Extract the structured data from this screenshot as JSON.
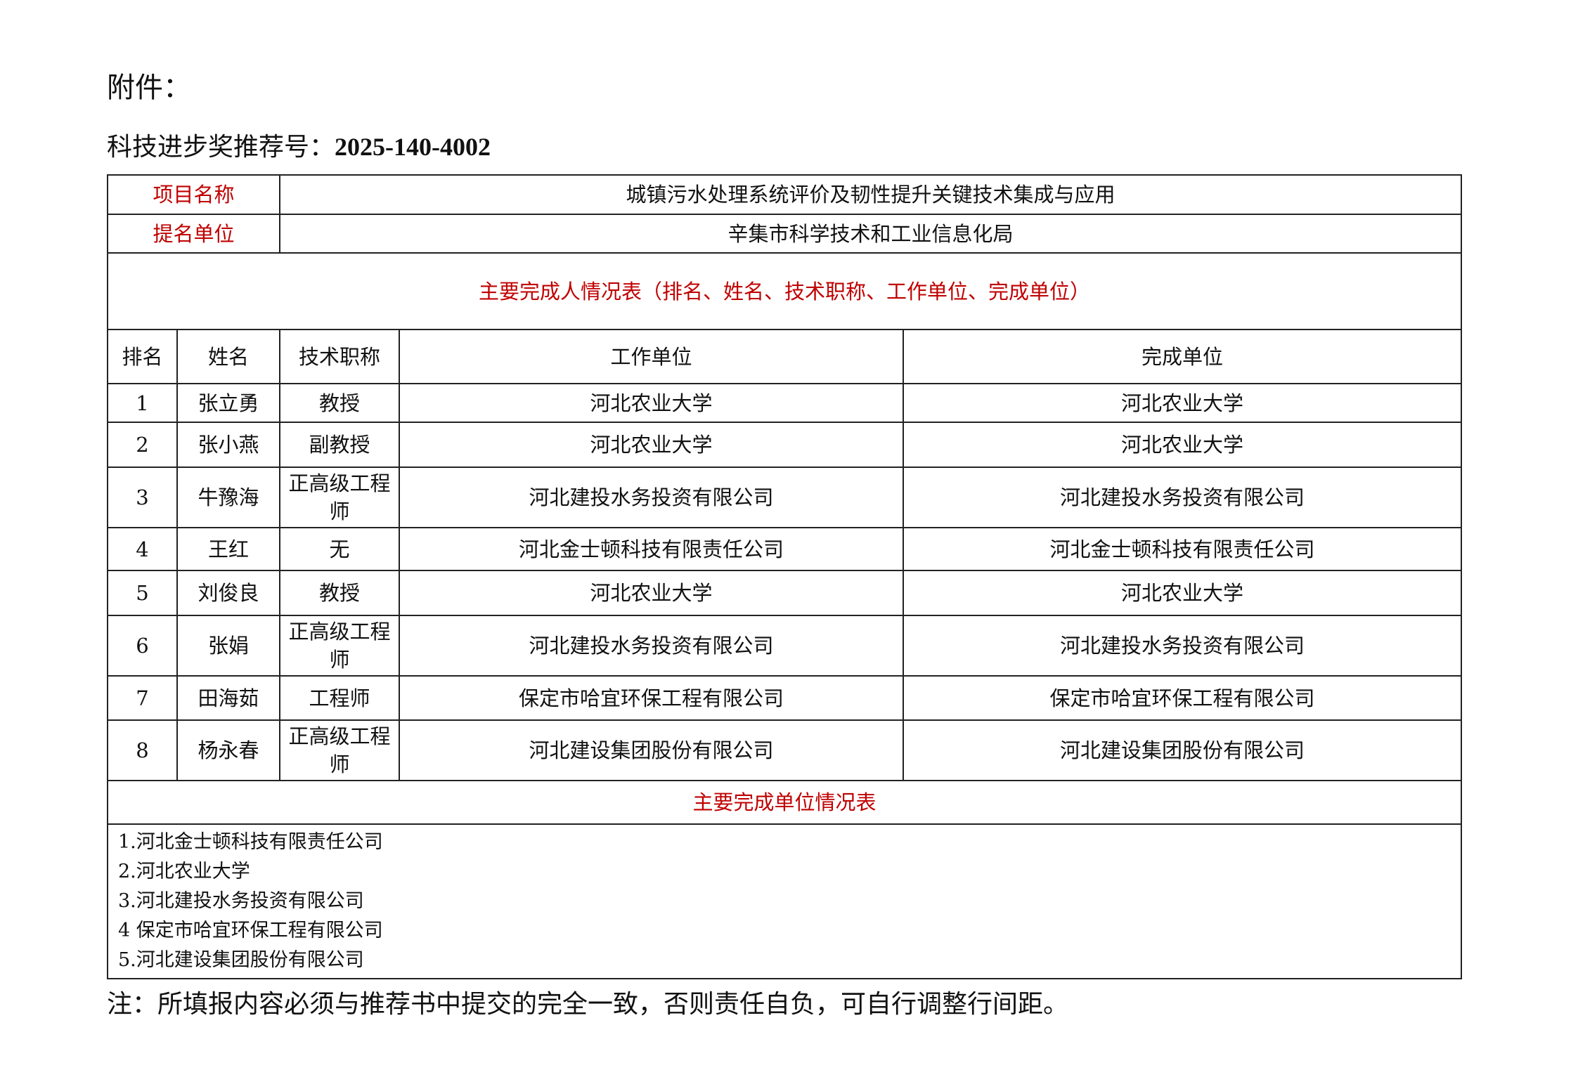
{
  "heading": "附件：",
  "recommend": {
    "label": "科技进步奖推荐号：",
    "number": "2025-140-4002"
  },
  "project": {
    "label": "项目名称",
    "value": "城镇污水处理系统评价及韧性提升关键技术集成与应用"
  },
  "nominator": {
    "label": "提名单位",
    "value": "辛集市科学技术和工业信息化局"
  },
  "persons_title": "主要完成人情况表（排名、姓名、技术职称、工作单位、完成单位）",
  "columns": [
    "排名",
    "姓名",
    "技术职称",
    "工作单位",
    "完成单位"
  ],
  "rows": [
    [
      "1",
      "张立勇",
      "教授",
      "河北农业大学",
      "河北农业大学"
    ],
    [
      "2",
      "张小燕",
      "副教授",
      "河北农业大学",
      "河北农业大学"
    ],
    [
      "3",
      "牛豫海",
      "正高级工程师",
      "河北建投水务投资有限公司",
      "河北建投水务投资有限公司"
    ],
    [
      "4",
      "王红",
      "无",
      "河北金士顿科技有限责任公司",
      "河北金士顿科技有限责任公司"
    ],
    [
      "5",
      "刘俊良",
      "教授",
      "河北农业大学",
      "河北农业大学"
    ],
    [
      "6",
      "张娟",
      "正高级工程师",
      "河北建投水务投资有限公司",
      "河北建投水务投资有限公司"
    ],
    [
      "7",
      "田海茹",
      "工程师",
      "保定市哈宜环保工程有限公司",
      "保定市哈宜环保工程有限公司"
    ],
    [
      "8",
      "杨永春",
      "正高级工程师",
      "河北建设集团股份有限公司",
      "河北建设集团股份有限公司"
    ]
  ],
  "units_title": "主要完成单位情况表",
  "units": [
    "1.河北金士顿科技有限责任公司",
    "2.河北农业大学",
    "3.河北建投水务投资有限公司",
    "4 保定市哈宜环保工程有限公司",
    "5.河北建设集团股份有限公司"
  ],
  "note": "注：所填报内容必须与推荐书中提交的完全一致，否则责任自负，可自行调整行间距。"
}
